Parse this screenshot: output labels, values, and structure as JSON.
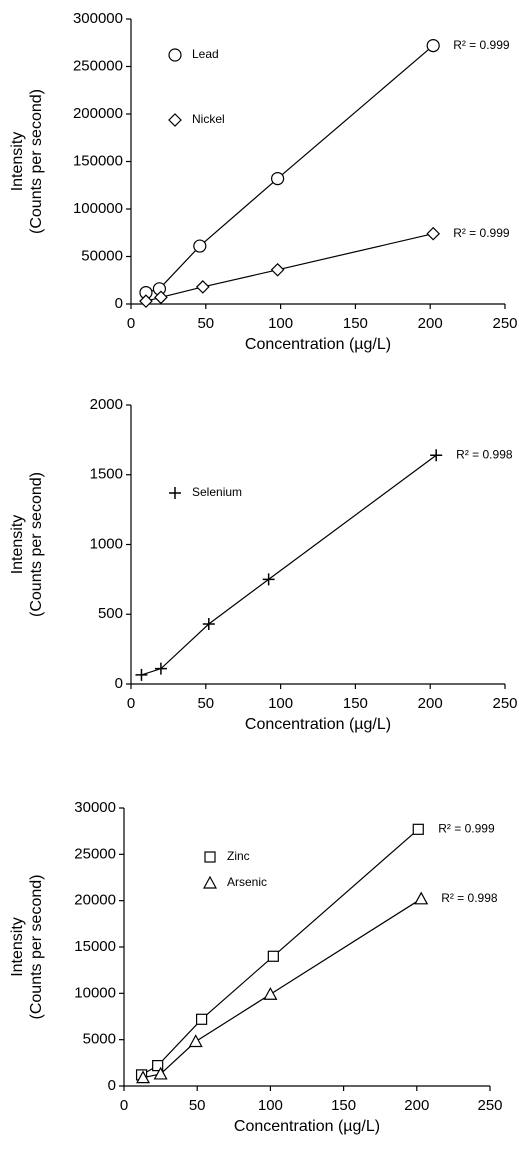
{
  "chart_data": [
    {
      "type": "scatter",
      "ylabel": [
        "Intensity",
        "(Counts per second)"
      ],
      "xlabel": "Concentration (µg/L)",
      "xlim": [
        0,
        250
      ],
      "xticks": [
        0,
        50,
        100,
        150,
        200,
        250
      ],
      "ylim": [
        0,
        300000
      ],
      "yticks": [
        0,
        50000,
        100000,
        150000,
        200000,
        250000,
        300000
      ],
      "legend": "upper left",
      "series": [
        {
          "name": "Lead",
          "marker": "circle",
          "color": "#000000",
          "x": [
            10,
            19,
            46,
            98,
            202
          ],
          "values": [
            12000,
            16000,
            61000,
            132000,
            272000
          ],
          "annotation": "R² = 0.999"
        },
        {
          "name": "Nickel",
          "marker": "diamond",
          "color": "#000000",
          "x": [
            10,
            20,
            48,
            98,
            202
          ],
          "values": [
            3000,
            7000,
            18000,
            36000,
            74000
          ],
          "annotation": "R² = 0.999"
        }
      ]
    },
    {
      "type": "scatter",
      "ylabel": [
        "Intensity",
        "(Counts per second)"
      ],
      "xlabel": "Concentration (µg/L)",
      "xlim": [
        0,
        250
      ],
      "xticks": [
        0,
        50,
        100,
        150,
        200,
        250
      ],
      "ylim": [
        0,
        2000
      ],
      "yticks": [
        0,
        500,
        1000,
        1500,
        2000
      ],
      "legend": "upper left",
      "series": [
        {
          "name": "Selenium",
          "marker": "plus",
          "color": "#000000",
          "x": [
            7,
            20,
            52,
            92,
            204
          ],
          "values": [
            65,
            110,
            430,
            750,
            1640
          ],
          "annotation": "R² = 0.998"
        }
      ]
    },
    {
      "type": "scatter",
      "ylabel": [
        "Intensity",
        "(Counts per second)"
      ],
      "xlabel": "Concentration (µg/L)",
      "xlim": [
        0,
        250
      ],
      "xticks": [
        0,
        50,
        100,
        150,
        200,
        250
      ],
      "ylim": [
        0,
        30000
      ],
      "yticks": [
        0,
        5000,
        10000,
        15000,
        20000,
        25000,
        30000
      ],
      "legend": "upper left",
      "series": [
        {
          "name": "Zinc",
          "marker": "square",
          "color": "#000000",
          "x": [
            12,
            23,
            53,
            102,
            201
          ],
          "values": [
            1200,
            2200,
            7200,
            14000,
            27700
          ],
          "annotation": "R² = 0.999"
        },
        {
          "name": "Arsenic",
          "marker": "triangle",
          "color": "#000000",
          "x": [
            13,
            25,
            49,
            100,
            203
          ],
          "values": [
            900,
            1300,
            4800,
            9900,
            20200
          ],
          "annotation": "R² = 0.998"
        }
      ]
    }
  ]
}
